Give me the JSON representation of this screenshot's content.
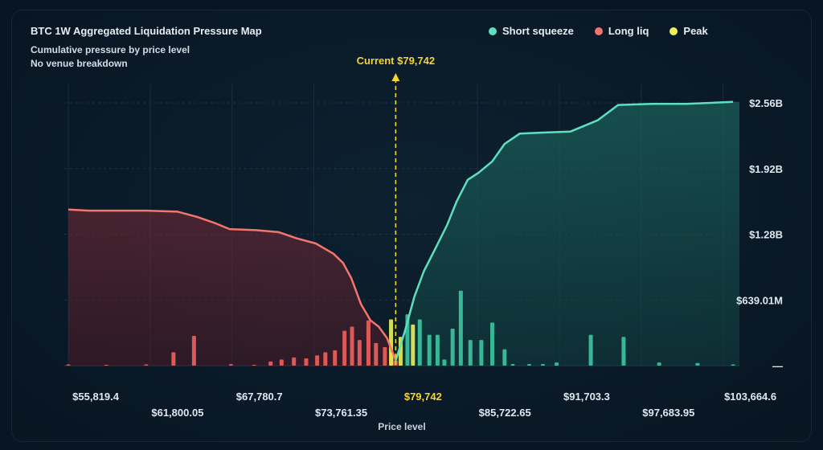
{
  "chart_data": {
    "type": "area",
    "title": "BTC 1W Aggregated Liquidation Pressure Map",
    "subtitle_lines": [
      "Cumulative pressure by price level",
      "No venue breakdown"
    ],
    "xlabel": "Price level",
    "xlim": [
      55519.95,
      104862.15
    ],
    "ylim": [
      0,
      2.56
    ],
    "x_ticks": [
      {
        "value": 55819.4,
        "label": "$55,819.4",
        "row": 0
      },
      {
        "value": 61800.05,
        "label": "$61,800.05",
        "row": 1
      },
      {
        "value": 67780.7,
        "label": "$67,780.7",
        "row": 0
      },
      {
        "value": 73761.35,
        "label": "$73,761.35",
        "row": 1
      },
      {
        "value": 79742,
        "label": "$79,742",
        "row": 0,
        "highlight": true
      },
      {
        "value": 85722.65,
        "label": "$85,722.65",
        "row": 1
      },
      {
        "value": 91703.3,
        "label": "$91,703.3",
        "row": 0
      },
      {
        "value": 97683.95,
        "label": "$97,683.95",
        "row": 1
      },
      {
        "value": 103664.6,
        "label": "$103,664.6",
        "row": 0
      }
    ],
    "y_ticks": [
      {
        "value": 2.56,
        "label": "$2.56B"
      },
      {
        "value": 1.92,
        "label": "$1.92B"
      },
      {
        "value": 1.28,
        "label": "$1.28B"
      },
      {
        "value": 0.63901,
        "label": "$639.01M"
      },
      {
        "value": 0,
        "label": "—"
      }
    ],
    "current": {
      "value": 79742,
      "label": "Current $79,742"
    },
    "colors": {
      "short": "#5ee0c0",
      "long": "#f2766e",
      "peak": "#eef05a",
      "current": "#f5d531"
    },
    "legend": [
      {
        "name": "Short squeeze",
        "color": "#5ee0c0"
      },
      {
        "name": "Long liq",
        "color": "#f2766e"
      },
      {
        "name": "Peak",
        "color": "#eef05a"
      }
    ],
    "long_cumulative": [
      [
        55819.4,
        1.52
      ],
      [
        57300,
        1.51
      ],
      [
        59000,
        1.51
      ],
      [
        61500,
        1.51
      ],
      [
        63800,
        1.5
      ],
      [
        65200,
        1.45
      ],
      [
        66500,
        1.39
      ],
      [
        67600,
        1.33
      ],
      [
        69500,
        1.32
      ],
      [
        71200,
        1.3
      ],
      [
        72500,
        1.24
      ],
      [
        73900,
        1.19
      ],
      [
        75200,
        1.09
      ],
      [
        75900,
        1.0
      ],
      [
        76500,
        0.85
      ],
      [
        77200,
        0.6
      ],
      [
        77900,
        0.44
      ],
      [
        78500,
        0.38
      ],
      [
        79100,
        0.27
      ],
      [
        79742,
        0.05
      ]
    ],
    "short_cumulative": [
      [
        79742,
        0.05
      ],
      [
        80400,
        0.33
      ],
      [
        81100,
        0.67
      ],
      [
        81800,
        0.92
      ],
      [
        82600,
        1.13
      ],
      [
        83500,
        1.37
      ],
      [
        84200,
        1.6
      ],
      [
        85000,
        1.81
      ],
      [
        85800,
        1.88
      ],
      [
        86800,
        1.99
      ],
      [
        87700,
        2.16
      ],
      [
        88800,
        2.26
      ],
      [
        90500,
        2.27
      ],
      [
        92500,
        2.28
      ],
      [
        94500,
        2.39
      ],
      [
        96000,
        2.54
      ],
      [
        98500,
        2.55
      ],
      [
        101000,
        2.55
      ],
      [
        104400,
        2.57
      ]
    ],
    "long_bars": [
      [
        55819.4,
        0.012
      ],
      [
        58600,
        0.008
      ],
      [
        61500,
        0.012
      ],
      [
        63500,
        0.13
      ],
      [
        65000,
        0.29
      ],
      [
        67700,
        0.015
      ],
      [
        69400,
        0.008
      ],
      [
        70600,
        0.04
      ],
      [
        71400,
        0.06
      ],
      [
        72300,
        0.08
      ],
      [
        73200,
        0.07
      ],
      [
        74000,
        0.1
      ],
      [
        74600,
        0.13
      ],
      [
        75300,
        0.15
      ],
      [
        76000,
        0.34
      ],
      [
        76550,
        0.38
      ],
      [
        77100,
        0.25
      ],
      [
        77750,
        0.44
      ],
      [
        78300,
        0.22
      ],
      [
        78950,
        0.18
      ],
      [
        79450,
        0.13
      ],
      [
        79742,
        0.05
      ]
    ],
    "peak_bars": [
      [
        79400,
        0.45
      ],
      [
        80100,
        0.28
      ],
      [
        81000,
        0.4
      ]
    ],
    "short_bars": [
      [
        80600,
        0.5
      ],
      [
        81500,
        0.45
      ],
      [
        82200,
        0.3
      ],
      [
        82800,
        0.3
      ],
      [
        83300,
        0.06
      ],
      [
        83900,
        0.36
      ],
      [
        84500,
        0.73
      ],
      [
        85200,
        0.25
      ],
      [
        86000,
        0.25
      ],
      [
        86800,
        0.42
      ],
      [
        87700,
        0.16
      ],
      [
        88300,
        0.016
      ],
      [
        89500,
        0.016
      ],
      [
        90500,
        0.016
      ],
      [
        91500,
        0.03
      ],
      [
        94000,
        0.3
      ],
      [
        96400,
        0.28
      ],
      [
        99000,
        0.03
      ],
      [
        101800,
        0.025
      ],
      [
        104400,
        0.012
      ]
    ]
  }
}
